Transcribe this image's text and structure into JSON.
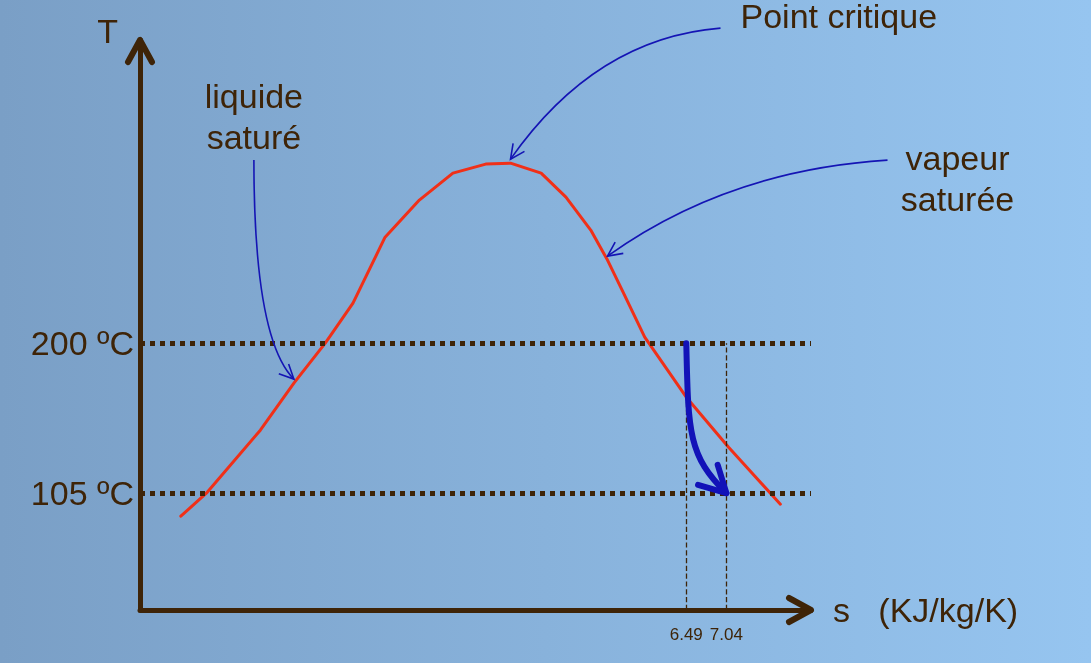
{
  "chart_data": {
    "type": "line",
    "xlabel": "s   (KJ/kg/K)",
    "ylabel": "T",
    "marker": "none",
    "grid": false,
    "xlim": [
      -1.0,
      8.2
    ],
    "ylim": [
      31,
      392
    ],
    "xticks": [
      6.49,
      7.04
    ],
    "yticks": [
      {
        "value": 105,
        "label": "105 ºC"
      },
      {
        "value": 200,
        "label": "200 ºC"
      }
    ],
    "series": [
      {
        "color": "#f03018",
        "x": [
          -0.44,
          -0.09,
          0.65,
          1.11,
          1.54,
          1.92,
          2.36,
          2.83,
          3.29,
          3.74,
          4.08,
          4.5,
          4.84,
          5.18,
          5.41,
          5.63,
          5.92,
          6.49,
          7.07,
          7.78
        ],
        "values": [
          90.4,
          105.0,
          144.9,
          174.7,
          200.0,
          225.3,
          267.1,
          290.6,
          307.7,
          313.4,
          314.0,
          307.7,
          292.5,
          271.6,
          252.6,
          231.7,
          203.8,
          165.8,
          134.1,
          98.0
        ]
      }
    ],
    "ref_lines": [
      {
        "axis": "y",
        "value": 200,
        "color": "#3e2408",
        "line_style": "dotted"
      },
      {
        "axis": "y",
        "value": 105,
        "color": "#3e2408",
        "line_style": "dotted"
      },
      {
        "axis": "x",
        "value": 6.49,
        "color": "#3e2408",
        "line_style": "dashed"
      },
      {
        "axis": "x",
        "value": 7.04,
        "color": "#3e2408",
        "line_style": "dashed"
      }
    ],
    "annotations": [
      {
        "text": "Point critique",
        "x": 4.08,
        "y": 314.0
      },
      {
        "text": "liquide\nsaturé",
        "x": 1.11,
        "y": 174.7
      },
      {
        "text": "vapeur\nsaturée",
        "x": 5.41,
        "y": 252.6
      }
    ]
  }
}
